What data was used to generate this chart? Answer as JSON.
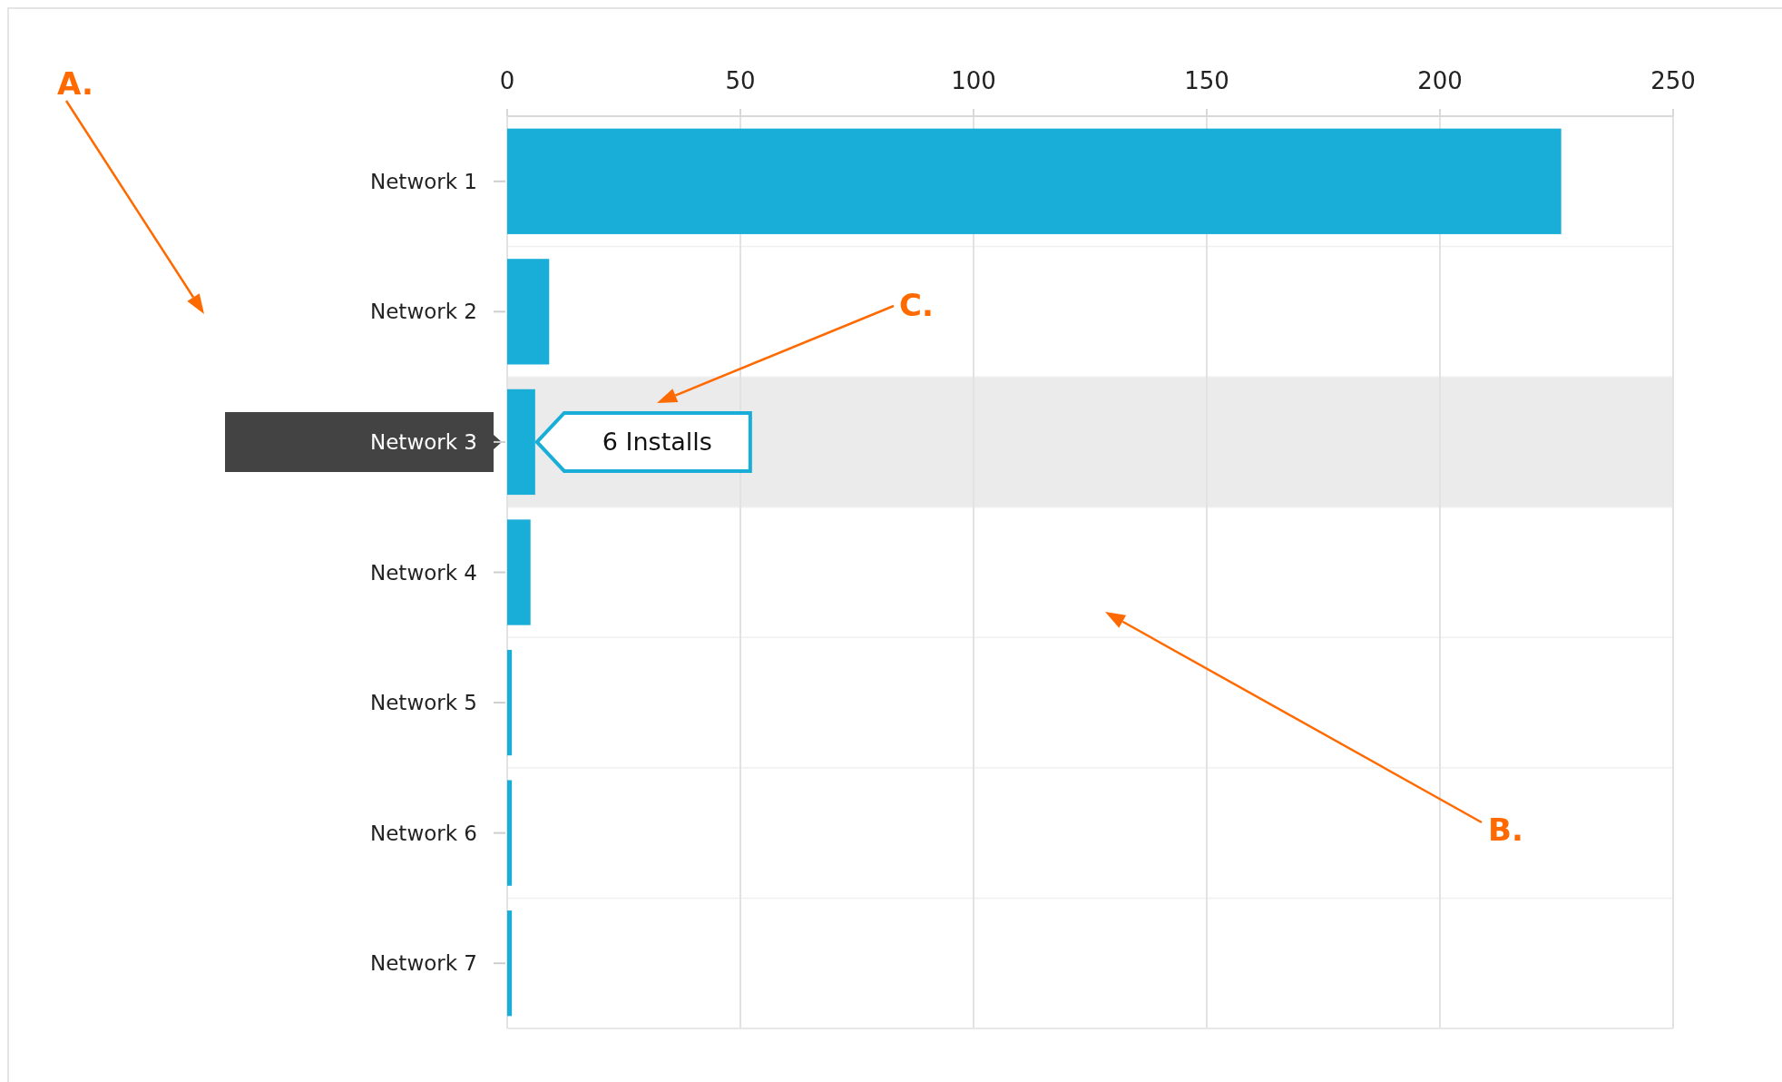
{
  "chart_data": {
    "type": "bar",
    "orientation": "horizontal",
    "categories": [
      "Network 1",
      "Network 2",
      "Network 3",
      "Network 4",
      "Network 5",
      "Network 6",
      "Network 7"
    ],
    "values": [
      226,
      9,
      6,
      5,
      1,
      1,
      1
    ],
    "color": "#19aed8",
    "xlim": [
      0,
      250
    ],
    "xticks": [
      0,
      50,
      100,
      150,
      200,
      250
    ],
    "grid": "x",
    "bands": [
      {
        "axis": "y",
        "from": "Network 3",
        "to": "Network 3",
        "color": "#ebebeb"
      }
    ],
    "annotations": [
      {
        "text": "6 Installs",
        "x": 6,
        "y": "Network 3"
      },
      "A.",
      "B.",
      "C."
    ]
  }
}
